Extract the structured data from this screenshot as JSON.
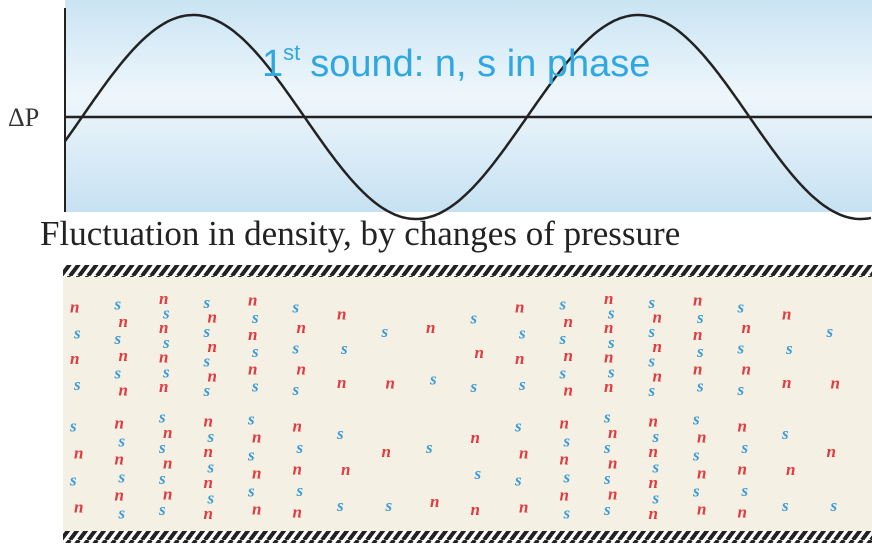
{
  "top_panel": {
    "title": {
      "number": "1",
      "ordinal": "st",
      "text": "sound: n, s in phase"
    },
    "axis_label": "ΔP"
  },
  "caption": "Fluctuation in density, by changes of pressure",
  "particles": {
    "normal": {
      "label": "n",
      "color": "#e23a3f"
    },
    "super": {
      "label": "s",
      "color": "#3c9bd6"
    }
  }
}
